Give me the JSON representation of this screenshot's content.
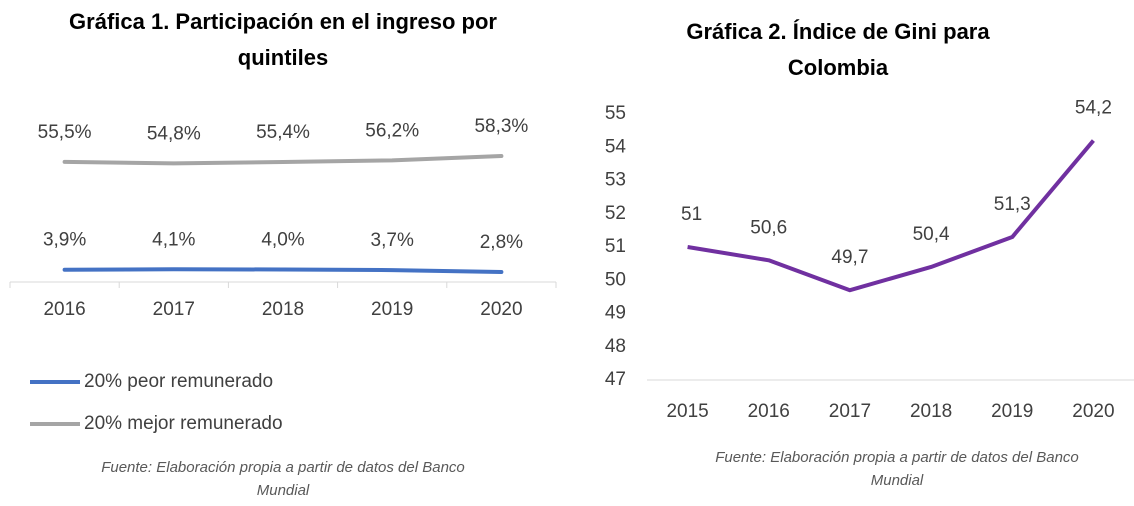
{
  "chart_data": [
    {
      "type": "line",
      "title": "Gráfica 1. Participación en el ingreso por quintiles",
      "categories": [
        "2016",
        "2017",
        "2018",
        "2019",
        "2020"
      ],
      "series": [
        {
          "name": "20% peor remunerado",
          "color": "#4472c4",
          "values": [
            3.9,
            4.1,
            4.0,
            3.7,
            2.8
          ],
          "value_labels": [
            "3,9%",
            "4,1%",
            "4,0%",
            "3,7%",
            "2,8%"
          ]
        },
        {
          "name": "20% mejor remunerado",
          "color": "#a5a5a5",
          "values": [
            55.5,
            54.8,
            55.4,
            56.2,
            58.3
          ],
          "value_labels": [
            "55,5%",
            "54,8%",
            "55,4%",
            "56,2%",
            "58,3%"
          ]
        }
      ],
      "source": "Fuente: Elaboración propia a partir de datos del Banco Mundial"
    },
    {
      "type": "line",
      "title": "Gráfica 2. Índice de Gini para Colombia",
      "categories": [
        "2015",
        "2016",
        "2017",
        "2018",
        "2019",
        "2020"
      ],
      "series": [
        {
          "color": "#7030a0",
          "values": [
            51,
            50.6,
            49.7,
            50.4,
            51.3,
            54.2
          ],
          "value_labels": [
            "51",
            "50,6",
            "49,7",
            "50,4",
            "51,3",
            "54,2"
          ]
        }
      ],
      "ylim": [
        47,
        55
      ],
      "yticks": [
        47,
        48,
        49,
        50,
        51,
        52,
        53,
        54,
        55
      ],
      "source": "Fuente: Elaboración propia a partir de datos del Banco Mundial"
    }
  ]
}
